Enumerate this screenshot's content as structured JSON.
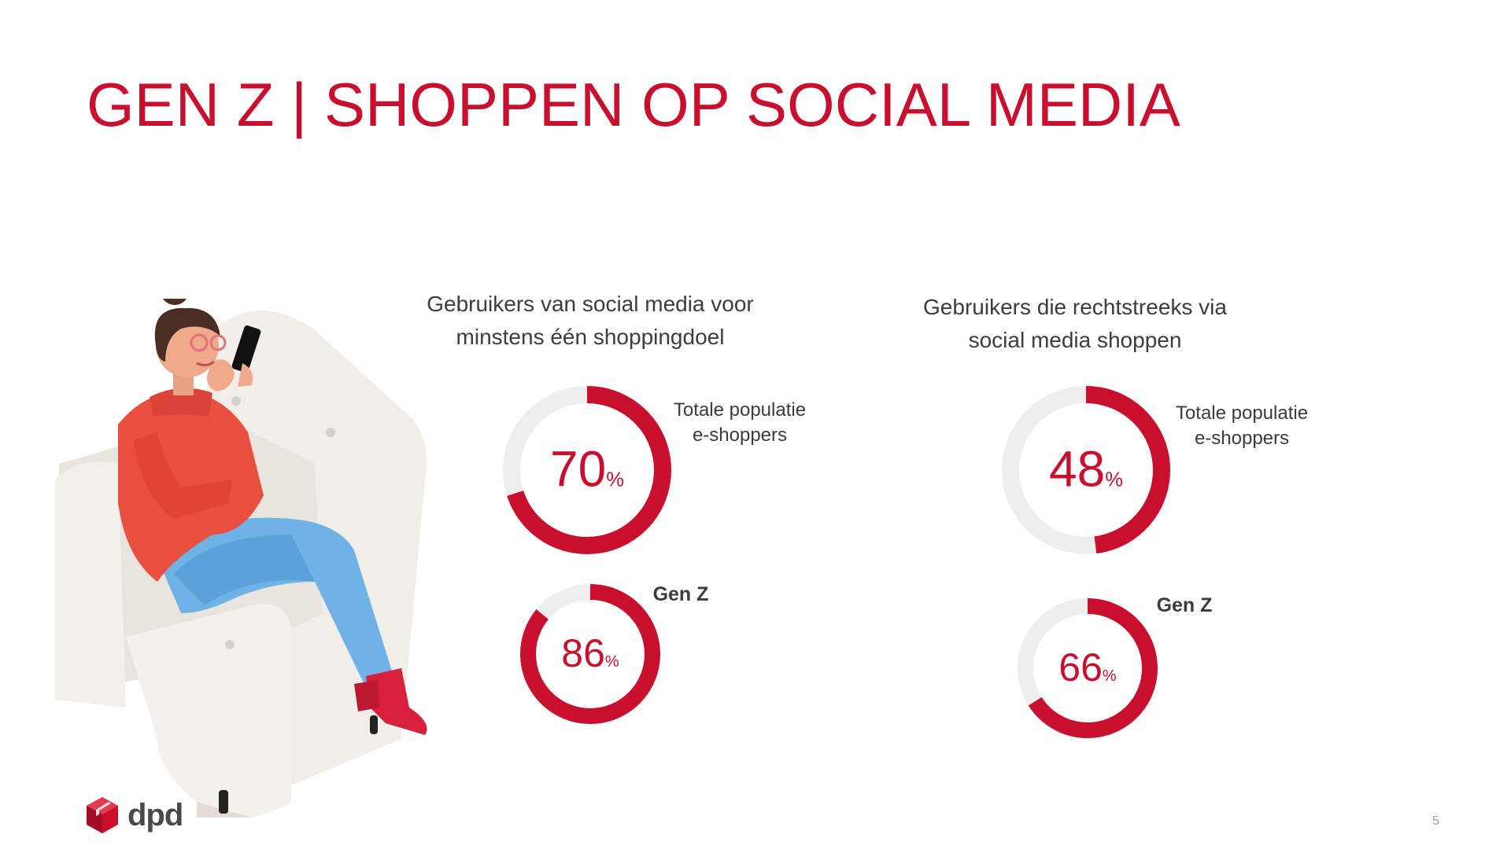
{
  "title": "GEN Z | SHOPPEN OP SOCIAL MEDIA",
  "colors": {
    "accent": "#c8102e",
    "track": "#eeeeee",
    "text": "#3c3c3c"
  },
  "chart_data": [
    {
      "type": "pie",
      "title": "Gebruikers van social media voor minstens één shoppingdoel",
      "series": [
        {
          "name": "Totale populatie e-shoppers",
          "name_lines": [
            "Totale populatie",
            "e-shoppers"
          ],
          "value": 70,
          "unit": "%"
        },
        {
          "name": "Gen Z",
          "name_lines": [
            "Gen Z"
          ],
          "value": 86,
          "unit": "%"
        }
      ],
      "title_lines": [
        "Gebruikers van social media voor",
        "minstens één shoppingdoel"
      ]
    },
    {
      "type": "pie",
      "title": "Gebruikers die rechtstreeks via social media shoppen",
      "series": [
        {
          "name": "Totale populatie e-shoppers",
          "name_lines": [
            "Totale populatie",
            "e-shoppers"
          ],
          "value": 48,
          "unit": "%"
        },
        {
          "name": "Gen Z",
          "name_lines": [
            "Gen Z"
          ],
          "value": 66,
          "unit": "%"
        }
      ],
      "title_lines": [
        "Gebruikers die rechtstreeks via",
        "social media shoppen"
      ]
    }
  ],
  "logo": {
    "text": "dpd",
    "icon": "dpd-cube-icon"
  },
  "page_number": "5",
  "illustration": {
    "icon": "woman-on-armchair-with-phone-illustration"
  }
}
